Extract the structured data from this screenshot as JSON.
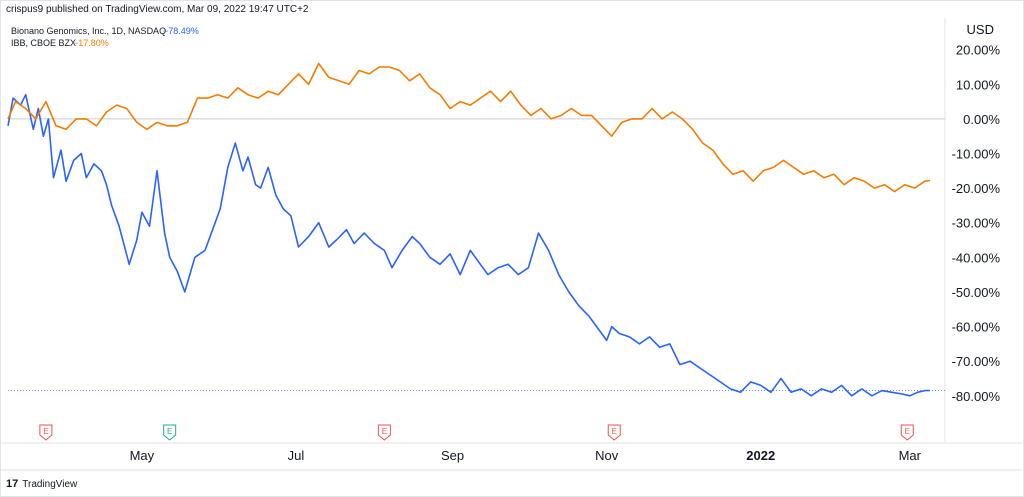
{
  "header": {
    "text": "crispus9 published on TradingView.com, Mar 09, 2022 19:47 UTC+2"
  },
  "footer": {
    "logo_glyph": "17",
    "brand": "TradingView"
  },
  "colors": {
    "bionano": "#2962ff",
    "ibb": "#f57c00",
    "earnings_red": "#ef5350",
    "earnings_green": "#26a69a"
  },
  "chart_data": {
    "type": "line",
    "currency_label": "USD",
    "y_unit": "%",
    "ylim": [
      -87,
      28
    ],
    "y_ticks": [
      "20.00%",
      "10.00%",
      "0.00%",
      "-10.00%",
      "-20.00%",
      "-30.00%",
      "-40.00%",
      "-50.00%",
      "-60.00%",
      "-70.00%",
      "-80.00%"
    ],
    "y_tick_values": [
      20,
      10,
      0,
      -10,
      -20,
      -30,
      -40,
      -50,
      -60,
      -70,
      -80
    ],
    "x_ticks": [
      "May",
      "Jul",
      "Sep",
      "Nov",
      "2022",
      "Mar"
    ],
    "x_tick_dates": [
      "2021-05-01",
      "2021-07-01",
      "2021-09-01",
      "2021-11-01",
      "2022-01-01",
      "2022-03-01"
    ],
    "x_range": [
      "2021-03-09",
      "2022-03-09"
    ],
    "grid": false,
    "legend_position": "top-left",
    "series": [
      {
        "name": "Bionano Genomics, Inc., 1D, NASDAQ",
        "legend_value": "−78.49%",
        "x": [
          "2021-03-09",
          "2021-03-11",
          "2021-03-14",
          "2021-03-16",
          "2021-03-19",
          "2021-03-21",
          "2021-03-23",
          "2021-03-25",
          "2021-03-27",
          "2021-03-30",
          "2021-04-01",
          "2021-04-04",
          "2021-04-07",
          "2021-04-09",
          "2021-04-12",
          "2021-04-15",
          "2021-04-17",
          "2021-04-19",
          "2021-04-22",
          "2021-04-26",
          "2021-04-29",
          "2021-05-01",
          "2021-05-04",
          "2021-05-07",
          "2021-05-10",
          "2021-05-12",
          "2021-05-15",
          "2021-05-18",
          "2021-05-22",
          "2021-05-26",
          "2021-05-29",
          "2021-06-01",
          "2021-06-04",
          "2021-06-07",
          "2021-06-10",
          "2021-06-12",
          "2021-06-15",
          "2021-06-17",
          "2021-06-20",
          "2021-06-23",
          "2021-06-26",
          "2021-06-29",
          "2021-07-02",
          "2021-07-06",
          "2021-07-10",
          "2021-07-14",
          "2021-07-17",
          "2021-07-21",
          "2021-07-24",
          "2021-07-28",
          "2021-08-01",
          "2021-08-05",
          "2021-08-08",
          "2021-08-12",
          "2021-08-16",
          "2021-08-19",
          "2021-08-23",
          "2021-08-27",
          "2021-08-31",
          "2021-09-04",
          "2021-09-08",
          "2021-09-11",
          "2021-09-15",
          "2021-09-19",
          "2021-09-23",
          "2021-09-27",
          "2021-10-01",
          "2021-10-05",
          "2021-10-09",
          "2021-10-13",
          "2021-10-17",
          "2021-10-21",
          "2021-10-25",
          "2021-10-28",
          "2021-11-01",
          "2021-11-03",
          "2021-11-06",
          "2021-11-10",
          "2021-11-14",
          "2021-11-18",
          "2021-11-22",
          "2021-11-26",
          "2021-11-30",
          "2021-12-04",
          "2021-12-08",
          "2021-12-12",
          "2021-12-16",
          "2021-12-20",
          "2021-12-24",
          "2021-12-28",
          "2022-01-01",
          "2022-01-05",
          "2022-01-09",
          "2022-01-13",
          "2022-01-17",
          "2022-01-21",
          "2022-01-25",
          "2022-01-29",
          "2022-02-02",
          "2022-02-06",
          "2022-02-10",
          "2022-02-14",
          "2022-02-18",
          "2022-02-22",
          "2022-02-26",
          "2022-03-01",
          "2022-03-04",
          "2022-03-07",
          "2022-03-09"
        ],
        "values": [
          -2,
          6,
          4,
          7,
          -3,
          3,
          -5,
          0,
          -17,
          -9,
          -18,
          -12,
          -10,
          -17,
          -13,
          -15,
          -19,
          -25,
          -31,
          -42,
          -35,
          -27,
          -31,
          -15,
          -33,
          -40,
          -44,
          -50,
          -40,
          -38,
          -32,
          -26,
          -14,
          -7,
          -15,
          -11,
          -19,
          -20,
          -14,
          -22,
          -26,
          -28,
          -37,
          -34,
          -30,
          -37,
          -35,
          -32,
          -36,
          -33,
          -36,
          -38,
          -43,
          -38,
          -34,
          -36,
          -40,
          -42,
          -39,
          -45,
          -38,
          -41,
          -45,
          -43,
          -42,
          -45,
          -43,
          -33,
          -38,
          -45,
          -50,
          -54,
          -57,
          -60,
          -64,
          -60,
          -62,
          -63,
          -65,
          -63,
          -66,
          -65,
          -71,
          -70,
          -72,
          -74,
          -76,
          -78,
          -79,
          -76,
          -77,
          -79,
          -75,
          -79,
          -78,
          -80,
          -78,
          -79,
          -77,
          -80,
          -78,
          -80,
          -78.5,
          -79,
          -79.5,
          -80,
          -79,
          -78.5,
          -78.49
        ]
      },
      {
        "name": "IBB, CBOE BZX",
        "legend_value": "−17.80%",
        "x": [
          "2021-03-09",
          "2021-03-12",
          "2021-03-16",
          "2021-03-20",
          "2021-03-24",
          "2021-03-28",
          "2021-04-01",
          "2021-04-05",
          "2021-04-09",
          "2021-04-13",
          "2021-04-17",
          "2021-04-21",
          "2021-04-25",
          "2021-04-29",
          "2021-05-03",
          "2021-05-07",
          "2021-05-11",
          "2021-05-15",
          "2021-05-19",
          "2021-05-23",
          "2021-05-27",
          "2021-05-31",
          "2021-06-04",
          "2021-06-08",
          "2021-06-12",
          "2021-06-16",
          "2021-06-20",
          "2021-06-24",
          "2021-06-28",
          "2021-07-02",
          "2021-07-06",
          "2021-07-10",
          "2021-07-14",
          "2021-07-18",
          "2021-07-22",
          "2021-07-26",
          "2021-07-30",
          "2021-08-03",
          "2021-08-07",
          "2021-08-11",
          "2021-08-15",
          "2021-08-19",
          "2021-08-23",
          "2021-08-27",
          "2021-08-31",
          "2021-09-04",
          "2021-09-08",
          "2021-09-12",
          "2021-09-16",
          "2021-09-20",
          "2021-09-24",
          "2021-09-28",
          "2021-10-02",
          "2021-10-06",
          "2021-10-10",
          "2021-10-14",
          "2021-10-18",
          "2021-10-22",
          "2021-10-26",
          "2021-10-30",
          "2021-11-03",
          "2021-11-07",
          "2021-11-11",
          "2021-11-15",
          "2021-11-19",
          "2021-11-23",
          "2021-11-27",
          "2021-12-01",
          "2021-12-05",
          "2021-12-09",
          "2021-12-13",
          "2021-12-17",
          "2021-12-21",
          "2021-12-25",
          "2021-12-29",
          "2022-01-02",
          "2022-01-06",
          "2022-01-10",
          "2022-01-14",
          "2022-01-18",
          "2022-01-22",
          "2022-01-26",
          "2022-01-30",
          "2022-02-03",
          "2022-02-07",
          "2022-02-11",
          "2022-02-15",
          "2022-02-19",
          "2022-02-23",
          "2022-02-27",
          "2022-03-03",
          "2022-03-07",
          "2022-03-09"
        ],
        "values": [
          0,
          5,
          3,
          0,
          5,
          -2,
          -3,
          0,
          0,
          -2,
          2,
          4,
          3,
          -1,
          -3,
          -1,
          -2,
          -2,
          -1,
          6,
          6,
          7,
          6,
          9,
          7,
          6,
          8,
          7,
          10,
          13,
          10,
          16,
          12,
          11,
          10,
          14,
          13,
          15,
          15,
          14,
          11,
          13,
          9,
          7,
          3,
          5,
          4,
          6,
          8,
          5,
          8,
          4,
          1,
          3,
          0,
          1,
          3,
          1,
          1,
          -2,
          -5,
          -1,
          0,
          0,
          3,
          0,
          2,
          0,
          -3,
          -7,
          -9,
          -13,
          -16,
          -15,
          -18,
          -15,
          -14,
          -12,
          -14,
          -16,
          -15,
          -17,
          -16,
          -19,
          -17,
          -18,
          -20,
          -19,
          -21,
          -19,
          -20,
          -18,
          -17.8
        ]
      }
    ],
    "earnings_markers": [
      {
        "date": "2021-03-24",
        "label": "E",
        "kind": "red"
      },
      {
        "date": "2021-05-12",
        "label": "E",
        "kind": "green"
      },
      {
        "date": "2021-08-05",
        "label": "E",
        "kind": "red"
      },
      {
        "date": "2021-11-04",
        "label": "E",
        "kind": "red"
      },
      {
        "date": "2022-02-28",
        "label": "E",
        "kind": "red"
      }
    ],
    "zero_line": true,
    "last_value_line_series": "Bionano Genomics, Inc., 1D, NASDAQ"
  }
}
